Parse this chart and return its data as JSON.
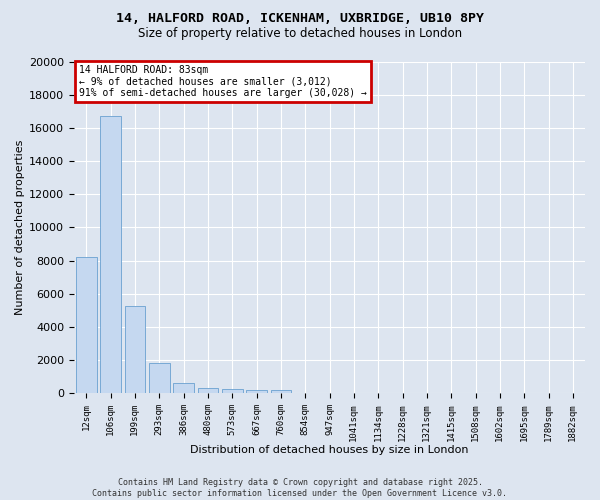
{
  "title_line1": "14, HALFORD ROAD, ICKENHAM, UXBRIDGE, UB10 8PY",
  "title_line2": "Size of property relative to detached houses in London",
  "xlabel": "Distribution of detached houses by size in London",
  "ylabel": "Number of detached properties",
  "bar_color": "#c5d8f0",
  "bar_edge_color": "#6aa0d0",
  "categories": [
    "12sqm",
    "106sqm",
    "199sqm",
    "293sqm",
    "386sqm",
    "480sqm",
    "573sqm",
    "667sqm",
    "760sqm",
    "854sqm",
    "947sqm",
    "1041sqm",
    "1134sqm",
    "1228sqm",
    "1321sqm",
    "1415sqm",
    "1508sqm",
    "1602sqm",
    "1695sqm",
    "1789sqm",
    "1882sqm"
  ],
  "values": [
    8200,
    16700,
    5300,
    1850,
    650,
    350,
    270,
    200,
    180,
    10,
    0,
    0,
    0,
    0,
    0,
    0,
    0,
    0,
    0,
    0,
    0
  ],
  "ylim": [
    0,
    20000
  ],
  "yticks": [
    0,
    2000,
    4000,
    6000,
    8000,
    10000,
    12000,
    14000,
    16000,
    18000,
    20000
  ],
  "annotation_box_text": "14 HALFORD ROAD: 83sqm\n← 9% of detached houses are smaller (3,012)\n91% of semi-detached houses are larger (30,028) →",
  "annotation_box_color": "#cc0000",
  "background_color": "#dde5f0",
  "plot_bg_color": "#dde5f0",
  "footer_line1": "Contains HM Land Registry data © Crown copyright and database right 2025.",
  "footer_line2": "Contains public sector information licensed under the Open Government Licence v3.0.",
  "grid_color": "#ffffff",
  "bar_width": 0.85
}
